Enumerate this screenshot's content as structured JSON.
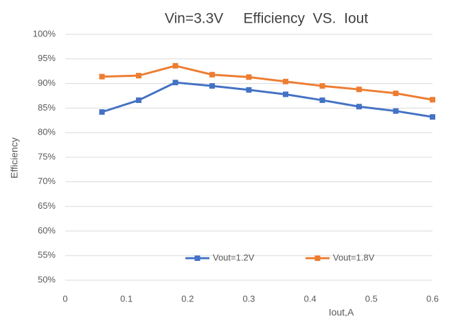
{
  "chart_data": {
    "type": "line",
    "title": "Vin=3.3V     Efficiency  VS.  Iout",
    "xlabel": "Iout,A",
    "ylabel": "Efficiency",
    "x": [
      0.06,
      0.12,
      0.18,
      0.24,
      0.3,
      0.36,
      0.42,
      0.48,
      0.54,
      0.6
    ],
    "series": [
      {
        "name": "Vout=1.2V",
        "color": "#4472c4",
        "values": [
          84.2,
          86.6,
          90.2,
          89.5,
          88.7,
          87.8,
          86.6,
          85.3,
          84.4,
          83.2
        ]
      },
      {
        "name": "Vout=1.8V",
        "color": "#ed7d31",
        "values": [
          91.4,
          91.6,
          93.6,
          91.8,
          91.3,
          90.4,
          89.5,
          88.8,
          88.0,
          86.7
        ]
      }
    ],
    "xlim": [
      0,
      0.6
    ],
    "xticks": [
      0,
      0.1,
      0.2,
      0.3,
      0.4,
      0.5,
      0.6
    ],
    "ylim": [
      50,
      100
    ],
    "yticks": [
      {
        "value": 50,
        "label": "50%"
      },
      {
        "value": 55,
        "label": "55%"
      },
      {
        "value": 60,
        "label": "60%"
      },
      {
        "value": 65,
        "label": "65%"
      },
      {
        "value": 70,
        "label": "70%"
      },
      {
        "value": 75,
        "label": "75%"
      },
      {
        "value": 80,
        "label": "80%"
      },
      {
        "value": 85,
        "label": "85%"
      },
      {
        "value": 90,
        "label": "90%"
      },
      {
        "value": 95,
        "label": "95%"
      },
      {
        "value": 100,
        "label": "100%"
      }
    ],
    "grid": true,
    "legend": "bottom"
  }
}
